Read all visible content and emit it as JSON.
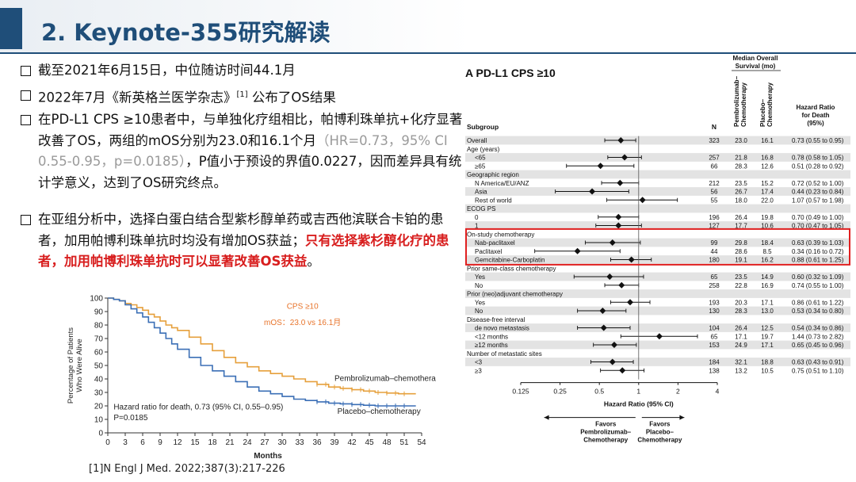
{
  "slide": {
    "title": "2. Keynote-355研究解读",
    "bullets": [
      {
        "text": "截至2021年6月15日，中位随访时间44.1月"
      },
      {
        "pre": "2022年7月《新英格兰医学杂志》",
        "sup": "[1]",
        "post": " 公布了OS结果"
      },
      {
        "pre": "在PD-L1 CPS ≥10患者中，与单独化疗组相比，帕博利珠单抗+化疗显著改善了OS，两组的mOS分别为23.0和16.1个月",
        "grey": "（HR=0.73，95% CI 0.55-0.95，p=0.0185）",
        "post": "，P值小于预设的界值0.0227，因而差异具有统计学意义，达到了OS研究终点。"
      },
      {
        "pre": "在亚组分析中，选择白蛋白结合型紫杉醇单药或吉西他滨联合卡铂的患者，加用帕博利珠单抗时均没有增加OS获益；",
        "red": "只有选择紫杉醇化疗的患者，加用帕博利珠单抗时可以显著改善OS获益",
        "post": "。"
      }
    ],
    "reference": "[1]N Engl J Med. 2022;387(3):217-226"
  },
  "chart_data": [
    {
      "type": "line",
      "title": "CPS ≥10",
      "subtitle": "mOS：23.0 vs 16.1月",
      "ylabel": "Percentage of Patients Who Were Alive",
      "xlabel": "Months",
      "ylim": [
        0,
        100
      ],
      "xlim": [
        0,
        54
      ],
      "xticks": [
        0,
        3,
        6,
        9,
        12,
        15,
        18,
        21,
        24,
        27,
        30,
        33,
        36,
        39,
        42,
        45,
        48,
        51,
        54
      ],
      "yticks": [
        0,
        10,
        20,
        30,
        40,
        50,
        60,
        70,
        80,
        90,
        100
      ],
      "annotation": "Hazard ratio for death, 0.73 (95% CI, 0.55–0.95)",
      "annotation2": "P=0.0185",
      "series": [
        {
          "name": "Pembrolizumab–chemotherapy",
          "color": "#e6a03c",
          "x": [
            0,
            1,
            2,
            3,
            4,
            5,
            6,
            7,
            8,
            9,
            10,
            11,
            12,
            14,
            16,
            18,
            20,
            22,
            24,
            26,
            28,
            30,
            32,
            34,
            36,
            38,
            40,
            42,
            44,
            46,
            48,
            50,
            52,
            53
          ],
          "y": [
            100,
            99,
            98,
            96,
            95,
            93,
            91,
            88,
            86,
            83,
            80,
            78,
            76,
            71,
            66,
            61,
            56,
            52,
            49,
            46,
            44,
            42,
            40,
            38,
            36,
            34,
            33,
            32,
            31,
            30,
            29.5,
            29,
            29,
            29
          ]
        },
        {
          "name": "Placebo–chemotherapy",
          "color": "#3b6fb6",
          "x": [
            0,
            1,
            2,
            3,
            4,
            5,
            6,
            7,
            8,
            9,
            10,
            11,
            12,
            14,
            16,
            18,
            20,
            22,
            24,
            26,
            28,
            30,
            32,
            34,
            36,
            38,
            40,
            42,
            44,
            46,
            48,
            50,
            52,
            53
          ],
          "y": [
            100,
            99,
            98,
            95,
            92,
            89,
            86,
            82,
            78,
            74,
            70,
            66,
            62,
            56,
            50,
            46,
            42,
            38,
            34,
            31,
            29,
            27,
            25,
            24,
            23,
            22,
            21.5,
            21,
            20.5,
            20,
            20,
            20,
            20,
            20
          ]
        }
      ]
    },
    {
      "type": "scatter",
      "title": "A  PD-L1 CPS ≥10",
      "header_group": "Median Overall Survival (mo)",
      "col_subgroup": "Subgroup",
      "col_n": "N",
      "col_pembro": "Pembrolizumab–Chemotherapy",
      "col_placebo": "Placebo–Chemotherapy",
      "col_hr": "Hazard Ratio for Death (95%)",
      "xlabel": "Hazard Ratio (95% CI)",
      "xscale": "log",
      "xticks": [
        0.125,
        0.25,
        0.5,
        1,
        2,
        4
      ],
      "xtick_labels": [
        "0.125",
        "0.25",
        "0.5",
        "1",
        "2",
        "4"
      ],
      "favors_left": "Favors Pembrolizumab–Chemotherapy",
      "favors_right": "Favors Placebo–Chemotherapy",
      "rows": [
        {
          "label": "Overall",
          "indent": false,
          "shade": true,
          "n": "323",
          "pem": "23.0",
          "pla": "16.1",
          "hr_text": "0.73 (0.55 to 0.95)",
          "hr": 0.73,
          "lo": 0.55,
          "hi": 0.95
        },
        {
          "label": "Age (years)",
          "header": true
        },
        {
          "label": "<65",
          "indent": true,
          "shade": true,
          "n": "257",
          "pem": "21.8",
          "pla": "16.8",
          "hr_text": "0.78 (0.58 to 1.05)",
          "hr": 0.78,
          "lo": 0.58,
          "hi": 1.05
        },
        {
          "label": "≥65",
          "indent": true,
          "n": "66",
          "pem": "28.3",
          "pla": "12.6",
          "hr_text": "0.51 (0.28 to 0.92)",
          "hr": 0.51,
          "lo": 0.28,
          "hi": 0.92
        },
        {
          "label": "Geographic region",
          "header": true,
          "shade": true
        },
        {
          "label": "N America/EU/ANZ",
          "indent": true,
          "n": "212",
          "pem": "23.5",
          "pla": "15.2",
          "hr_text": "0.72 (0.52 to 1.00)",
          "hr": 0.72,
          "lo": 0.52,
          "hi": 1.0
        },
        {
          "label": "Asia",
          "indent": true,
          "shade": true,
          "n": "56",
          "pem": "26.7",
          "pla": "17.4",
          "hr_text": "0.44 (0.23 to 0.84)",
          "hr": 0.44,
          "lo": 0.23,
          "hi": 0.84
        },
        {
          "label": "Rest of world",
          "indent": true,
          "n": "55",
          "pem": "18.0",
          "pla": "22.0",
          "hr_text": "1.07 (0.57 to 1.98)",
          "hr": 1.07,
          "lo": 0.57,
          "hi": 1.98
        },
        {
          "label": "ECOG PS",
          "header": true,
          "shade": true
        },
        {
          "label": "0",
          "indent": true,
          "n": "196",
          "pem": "26.4",
          "pla": "19.8",
          "hr_text": "0.70 (0.49 to 1.00)",
          "hr": 0.7,
          "lo": 0.49,
          "hi": 1.0
        },
        {
          "label": "1",
          "indent": true,
          "shade": true,
          "n": "127",
          "pem": "17.7",
          "pla": "10.6",
          "hr_text": "0.70 (0.47 to 1.05)",
          "hr": 0.7,
          "lo": 0.47,
          "hi": 1.05
        },
        {
          "label": "On-study chemotherapy",
          "header": true
        },
        {
          "label": "Nab-paclitaxel",
          "indent": true,
          "shade": true,
          "n": "99",
          "pem": "29.8",
          "pla": "18.4",
          "hr_text": "0.63 (0.39 to 1.03)",
          "hr": 0.63,
          "lo": 0.39,
          "hi": 1.03
        },
        {
          "label": "Paclitaxel",
          "indent": true,
          "n": "44",
          "pem": "28.6",
          "pla": "8.5",
          "hr_text": "0.34 (0.16 to 0.72)",
          "hr": 0.34,
          "lo": 0.16,
          "hi": 0.72
        },
        {
          "label": "Gemcitabine-Carboplatin",
          "indent": true,
          "shade": true,
          "n": "180",
          "pem": "19.1",
          "pla": "16.2",
          "hr_text": "0.88 (0.61 to 1.25)",
          "hr": 0.88,
          "lo": 0.61,
          "hi": 1.25
        },
        {
          "label": "Prior same-class chemotherapy",
          "header": true
        },
        {
          "label": "Yes",
          "indent": true,
          "shade": true,
          "n": "65",
          "pem": "23.5",
          "pla": "14.9",
          "hr_text": "0.60 (0.32 to 1.09)",
          "hr": 0.6,
          "lo": 0.32,
          "hi": 1.09
        },
        {
          "label": "No",
          "indent": true,
          "n": "258",
          "pem": "22.8",
          "pla": "16.9",
          "hr_text": "0.74 (0.55 to 1.00)",
          "hr": 0.74,
          "lo": 0.55,
          "hi": 1.0
        },
        {
          "label": "Prior (neo)adjuvant chemotherapy",
          "header": true,
          "shade": true
        },
        {
          "label": "Yes",
          "indent": true,
          "n": "193",
          "pem": "20.3",
          "pla": "17.1",
          "hr_text": "0.86 (0.61 to 1.22)",
          "hr": 0.86,
          "lo": 0.61,
          "hi": 1.22
        },
        {
          "label": "No",
          "indent": true,
          "shade": true,
          "n": "130",
          "pem": "28.3",
          "pla": "13.0",
          "hr_text": "0.53 (0.34 to 0.80)",
          "hr": 0.53,
          "lo": 0.34,
          "hi": 0.8
        },
        {
          "label": "Disease-free interval",
          "header": true
        },
        {
          "label": "de novo metastasis",
          "indent": true,
          "shade": true,
          "n": "104",
          "pem": "26.4",
          "pla": "12.5",
          "hr_text": "0.54 (0.34 to 0.86)",
          "hr": 0.54,
          "lo": 0.34,
          "hi": 0.86
        },
        {
          "label": "<12 months",
          "indent": true,
          "n": "65",
          "pem": "17.1",
          "pla": "19.7",
          "hr_text": "1.44 (0.73 to 2.82)",
          "hr": 1.44,
          "lo": 0.73,
          "hi": 2.82
        },
        {
          "label": "≥12 months",
          "indent": true,
          "shade": true,
          "n": "153",
          "pem": "24.9",
          "pla": "17.1",
          "hr_text": "0.65 (0.45 to 0.96)",
          "hr": 0.65,
          "lo": 0.45,
          "hi": 0.96
        },
        {
          "label": "Number of metastatic sites",
          "header": true
        },
        {
          "label": "<3",
          "indent": true,
          "shade": true,
          "n": "184",
          "pem": "32.1",
          "pla": "18.8",
          "hr_text": "0.63 (0.43 to 0.91)",
          "hr": 0.63,
          "lo": 0.43,
          "hi": 0.91
        },
        {
          "label": "≥3",
          "indent": true,
          "n": "138",
          "pem": "13.2",
          "pla": "10.5",
          "hr_text": "0.75 (0.51 to 1.10)",
          "hr": 0.75,
          "lo": 0.51,
          "hi": 1.1
        }
      ],
      "highlight_rows": [
        "Nab-paclitaxel",
        "Paclitaxel",
        "Gemcitabine-Carboplatin"
      ],
      "highlight_color": "#e02020"
    }
  ]
}
